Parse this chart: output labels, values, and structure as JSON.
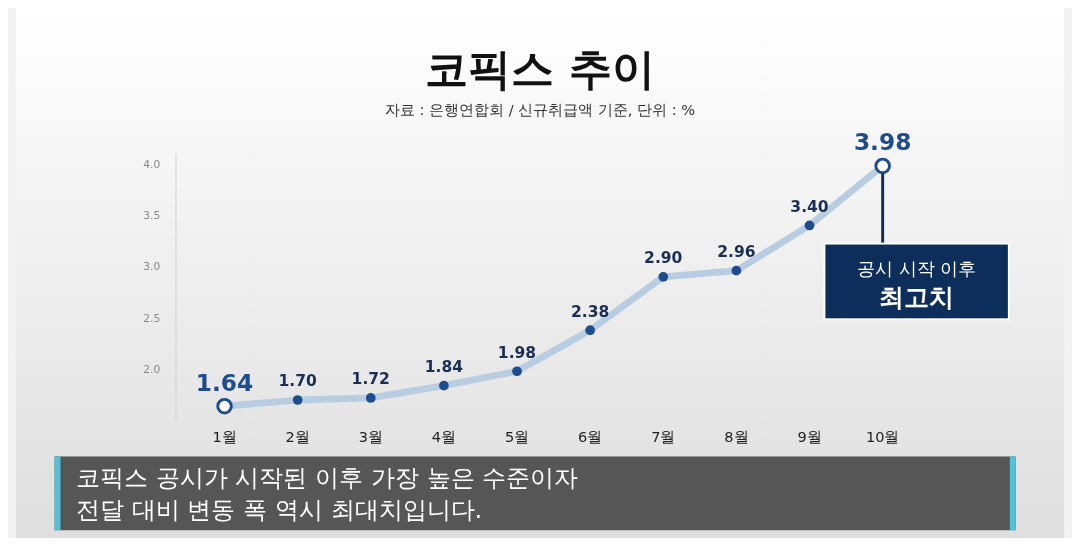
{
  "chart_data": {
    "type": "line",
    "title": "코픽스 추이",
    "subtitle": "자료 : 은행연합회 / 신규취급액 기준, 단위 : %",
    "categories": [
      "1월",
      "2월",
      "3월",
      "4월",
      "5월",
      "6월",
      "7월",
      "8월",
      "9월",
      "10월"
    ],
    "series": [
      {
        "color": "#b9cde2",
        "values": [
          1.64,
          1.7,
          1.72,
          1.84,
          1.98,
          2.38,
          2.9,
          2.96,
          3.4,
          3.98
        ],
        "value_labels": [
          "1.64",
          "1.70",
          "1.72",
          "1.84",
          "1.98",
          "2.38",
          "2.90",
          "2.96",
          "3.40",
          "3.98"
        ]
      }
    ],
    "ylim": [
      1.5,
      4.1
    ],
    "yticks": [
      {
        "value": 2,
        "label": "2.0"
      },
      {
        "value": 2.5,
        "label": "2.5"
      },
      {
        "value": 3,
        "label": "3.0"
      },
      {
        "value": 3.5,
        "label": "3.5"
      },
      {
        "value": 4,
        "label": "4.0"
      }
    ],
    "marker": "circle",
    "line_style": "solid",
    "annotations": [
      {
        "text": "공시 시작 이후\n최고치",
        "x": "10월",
        "y": 3.98
      },
      "코픽스 공시가 시작된 이후 가장 높은 수준이자\n전달 대비 변동 폭 역시 최대치입니다."
    ]
  }
}
